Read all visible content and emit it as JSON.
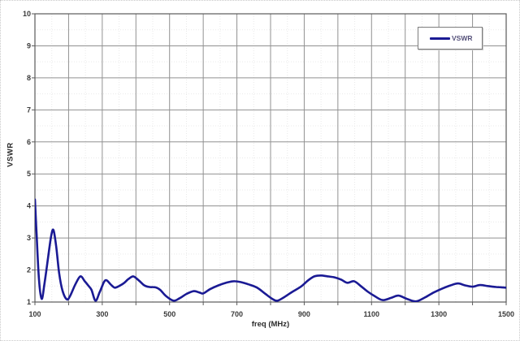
{
  "figure": {
    "background": "#ffffff",
    "outer_border_color": "#c9c9c9"
  },
  "legend": {
    "label": "VSWR",
    "line_color": "#1a1a94"
  },
  "chart_data": {
    "type": "line",
    "title": "",
    "xlabel": "freq (MHz)",
    "ylabel": "VSWR",
    "xlim": [
      100,
      1500
    ],
    "ylim": [
      1,
      10
    ],
    "x_major_step": 100,
    "x_minor_step": 50,
    "y_major_step": 1,
    "y_minor_step": 0.5,
    "x_tick_labels": [
      100,
      300,
      500,
      700,
      900,
      1100,
      1300,
      1500
    ],
    "y_tick_labels": [
      1,
      2,
      3,
      4,
      5,
      6,
      7,
      8,
      9,
      10
    ],
    "grid": true,
    "legend_position": "top-right",
    "colors": {
      "grid_major": "#919191",
      "grid_minor": "#e9e9e9",
      "border": "#5a5a5a",
      "tick_text": "#3a3a3a"
    },
    "series": [
      {
        "name": "VSWR",
        "color": "#1a1a94",
        "width": 2.6,
        "points": [
          [
            100,
            4.2
          ],
          [
            105,
            3.1
          ],
          [
            112,
            1.7
          ],
          [
            120,
            1.1
          ],
          [
            128,
            1.55
          ],
          [
            138,
            2.3
          ],
          [
            148,
            3.05
          ],
          [
            155,
            3.25
          ],
          [
            163,
            2.75
          ],
          [
            172,
            1.9
          ],
          [
            182,
            1.35
          ],
          [
            195,
            1.08
          ],
          [
            205,
            1.2
          ],
          [
            220,
            1.55
          ],
          [
            235,
            1.8
          ],
          [
            248,
            1.65
          ],
          [
            258,
            1.52
          ],
          [
            268,
            1.38
          ],
          [
            280,
            1.04
          ],
          [
            292,
            1.3
          ],
          [
            305,
            1.62
          ],
          [
            313,
            1.68
          ],
          [
            325,
            1.55
          ],
          [
            337,
            1.45
          ],
          [
            350,
            1.5
          ],
          [
            363,
            1.58
          ],
          [
            378,
            1.72
          ],
          [
            392,
            1.8
          ],
          [
            408,
            1.68
          ],
          [
            425,
            1.52
          ],
          [
            440,
            1.47
          ],
          [
            458,
            1.46
          ],
          [
            472,
            1.38
          ],
          [
            490,
            1.18
          ],
          [
            512,
            1.04
          ],
          [
            530,
            1.12
          ],
          [
            550,
            1.25
          ],
          [
            572,
            1.34
          ],
          [
            588,
            1.3
          ],
          [
            600,
            1.27
          ],
          [
            620,
            1.4
          ],
          [
            645,
            1.52
          ],
          [
            668,
            1.6
          ],
          [
            690,
            1.65
          ],
          [
            712,
            1.62
          ],
          [
            735,
            1.55
          ],
          [
            760,
            1.45
          ],
          [
            785,
            1.25
          ],
          [
            805,
            1.1
          ],
          [
            820,
            1.04
          ],
          [
            840,
            1.15
          ],
          [
            865,
            1.32
          ],
          [
            890,
            1.48
          ],
          [
            912,
            1.68
          ],
          [
            930,
            1.8
          ],
          [
            950,
            1.83
          ],
          [
            970,
            1.8
          ],
          [
            990,
            1.77
          ],
          [
            1010,
            1.7
          ],
          [
            1028,
            1.6
          ],
          [
            1048,
            1.65
          ],
          [
            1068,
            1.5
          ],
          [
            1088,
            1.33
          ],
          [
            1110,
            1.18
          ],
          [
            1133,
            1.06
          ],
          [
            1158,
            1.13
          ],
          [
            1180,
            1.2
          ],
          [
            1205,
            1.1
          ],
          [
            1232,
            1.02
          ],
          [
            1260,
            1.15
          ],
          [
            1285,
            1.3
          ],
          [
            1310,
            1.42
          ],
          [
            1335,
            1.52
          ],
          [
            1357,
            1.58
          ],
          [
            1378,
            1.52
          ],
          [
            1400,
            1.48
          ],
          [
            1422,
            1.53
          ],
          [
            1445,
            1.5
          ],
          [
            1470,
            1.47
          ],
          [
            1500,
            1.45
          ]
        ]
      }
    ]
  }
}
